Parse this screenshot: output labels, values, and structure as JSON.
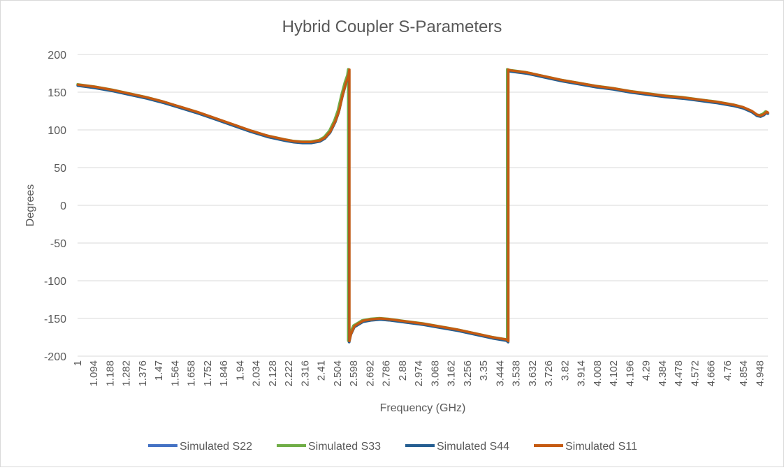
{
  "chart_data": {
    "type": "line",
    "title": "Hybrid Coupler S-Parameters",
    "xlabel": "Frequency (GHz)",
    "ylabel": "Degrees",
    "ylim": [
      -200,
      200
    ],
    "yticks": [
      "200",
      "150",
      "100",
      "50",
      "0",
      "-50",
      "-100",
      "-150",
      "-200"
    ],
    "xlim": [
      1,
      4.995
    ],
    "xticks": [
      "1",
      "1.094",
      "1.188",
      "1.282",
      "1.376",
      "1.47",
      "1.564",
      "1.658",
      "1.752",
      "1.846",
      "1.94",
      "2.034",
      "2.128",
      "2.222",
      "2.316",
      "2.41",
      "2.504",
      "2.598",
      "2.692",
      "2.786",
      "2.88",
      "2.974",
      "3.068",
      "3.162",
      "3.256",
      "3.35",
      "3.444",
      "3.538",
      "3.632",
      "3.726",
      "3.82",
      "3.914",
      "4.008",
      "4.102",
      "4.196",
      "4.29",
      "4.384",
      "4.478",
      "4.572",
      "4.666",
      "4.76",
      "4.854",
      "4.948"
    ],
    "grid": true,
    "legend_position": "bottom",
    "series": [
      {
        "name": "Simulated S22",
        "color": "#4472c4",
        "width": 3.5,
        "dx": 0.0,
        "dy": -1.0
      },
      {
        "name": "Simulated S33",
        "color": "#70ad47",
        "width": 3.5,
        "dx": -0.004,
        "dy": 0.5
      },
      {
        "name": "Simulated S44",
        "color": "#255e91",
        "width": 3.5,
        "dx": 0.002,
        "dy": -1.5
      },
      {
        "name": "Simulated S11",
        "color": "#c55a11",
        "width": 3.5,
        "dx": 0.003,
        "dy": 0.0
      }
    ],
    "base_curve": [
      [
        1.0,
        160
      ],
      [
        1.1,
        157
      ],
      [
        1.2,
        153
      ],
      [
        1.3,
        148
      ],
      [
        1.4,
        143
      ],
      [
        1.5,
        137
      ],
      [
        1.6,
        130
      ],
      [
        1.7,
        123
      ],
      [
        1.8,
        115
      ],
      [
        1.9,
        107
      ],
      [
        2.0,
        99
      ],
      [
        2.1,
        92
      ],
      [
        2.2,
        87
      ],
      [
        2.25,
        85
      ],
      [
        2.3,
        84
      ],
      [
        2.35,
        84
      ],
      [
        2.4,
        86
      ],
      [
        2.43,
        90
      ],
      [
        2.46,
        98
      ],
      [
        2.49,
        112
      ],
      [
        2.51,
        125
      ],
      [
        2.53,
        145
      ],
      [
        2.55,
        162
      ],
      [
        2.565,
        172
      ],
      [
        2.57,
        180
      ],
      [
        2.57,
        -180
      ],
      [
        2.58,
        -170
      ],
      [
        2.6,
        -160
      ],
      [
        2.65,
        -153
      ],
      [
        2.7,
        -151
      ],
      [
        2.75,
        -150
      ],
      [
        2.8,
        -151
      ],
      [
        2.9,
        -154
      ],
      [
        3.0,
        -157
      ],
      [
        3.1,
        -161
      ],
      [
        3.2,
        -165
      ],
      [
        3.3,
        -170
      ],
      [
        3.4,
        -175
      ],
      [
        3.48,
        -178
      ],
      [
        3.49,
        -180
      ],
      [
        3.49,
        180
      ],
      [
        3.5,
        179
      ],
      [
        3.6,
        176
      ],
      [
        3.7,
        171
      ],
      [
        3.8,
        166
      ],
      [
        3.9,
        162
      ],
      [
        4.0,
        158
      ],
      [
        4.1,
        155
      ],
      [
        4.2,
        151
      ],
      [
        4.3,
        148
      ],
      [
        4.4,
        145
      ],
      [
        4.5,
        143
      ],
      [
        4.6,
        140
      ],
      [
        4.7,
        137
      ],
      [
        4.8,
        133
      ],
      [
        4.85,
        130
      ],
      [
        4.9,
        125
      ],
      [
        4.93,
        120
      ],
      [
        4.95,
        119
      ],
      [
        4.97,
        121
      ],
      [
        4.985,
        124
      ],
      [
        4.995,
        123
      ]
    ]
  }
}
